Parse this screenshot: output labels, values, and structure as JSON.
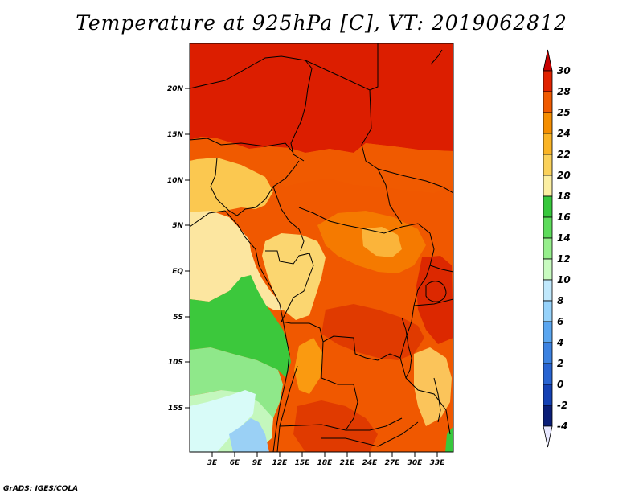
{
  "title": "Temperature at 925hPa [C], VT: 2019062812",
  "footer": "GrADS: IGES/COLA",
  "map": {
    "lat_labels": [
      "20N",
      "15N",
      "10N",
      "5N",
      "EQ",
      "5S",
      "10S",
      "15S"
    ],
    "lon_labels": [
      "3E",
      "6E",
      "9E",
      "12E",
      "15E",
      "18E",
      "21E",
      "24E",
      "27E",
      "30E",
      "33E"
    ]
  },
  "colorbar": {
    "levels": [
      "30",
      "28",
      "25",
      "24",
      "22",
      "20",
      "18",
      "16",
      "14",
      "12",
      "10",
      "8",
      "6",
      "4",
      "2",
      "0",
      "-2",
      "-4"
    ],
    "colors": [
      "#c80000",
      "#e12200",
      "#f05a00",
      "#f58e00",
      "#fab425",
      "#fad15a",
      "#fcefa2",
      "#37c83c",
      "#5ddc5b",
      "#96ef8c",
      "#c8fbc0",
      "#c0e8fc",
      "#96d2fa",
      "#5aa6f0",
      "#3c82e1",
      "#2864d2",
      "#1441b4",
      "#0a1e78",
      "#000a46"
    ],
    "over_color": "#c80000",
    "under_color": "#e8e8ff"
  },
  "palette": {
    "hot": "#dc1e00",
    "warm": "#f05000",
    "orange": "#f57a00",
    "amber": "#fa9a10",
    "yellow": "#fbd060",
    "pale": "#fce9a0",
    "green": "#3cc83c",
    "lightgreen": "#8fe88a",
    "palegreen": "#c4f7bd",
    "cyan": "#d8fbf8",
    "blue": "#9ad0f5"
  }
}
